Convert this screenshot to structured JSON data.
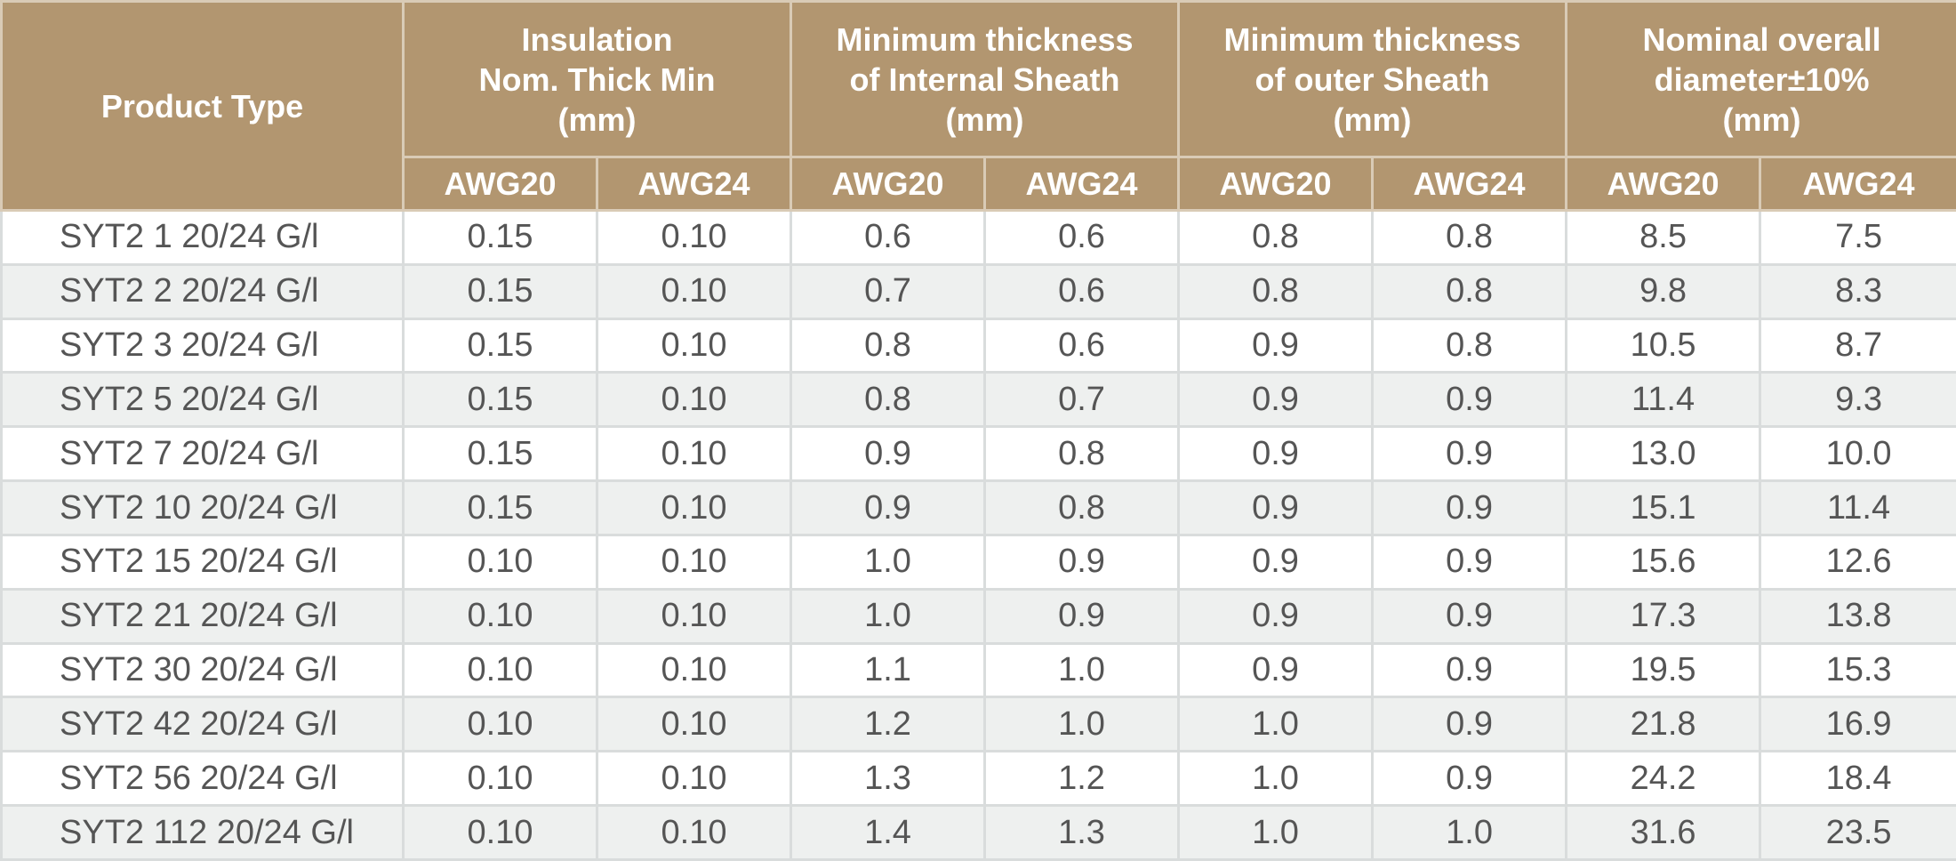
{
  "table": {
    "product_header": "Product Type",
    "groups": [
      {
        "lines": [
          "Insulation",
          "Nom. Thick Min",
          "(mm)"
        ],
        "sub": [
          "AWG20",
          "AWG24"
        ]
      },
      {
        "lines": [
          "Minimum thickness",
          "of Internal Sheath",
          "(mm)"
        ],
        "sub": [
          "AWG20",
          "AWG24"
        ]
      },
      {
        "lines": [
          "Minimum thickness",
          "of outer Sheath",
          "(mm)"
        ],
        "sub": [
          "AWG20",
          "AWG24"
        ]
      },
      {
        "lines": [
          "Nominal overall",
          "diameter±10%",
          "(mm)"
        ],
        "sub": [
          "AWG20",
          "AWG24"
        ]
      }
    ],
    "rows": [
      [
        "SYT2 1 20/24 G/l",
        "0.15",
        "0.10",
        "0.6",
        "0.6",
        "0.8",
        "0.8",
        "8.5",
        "7.5"
      ],
      [
        "SYT2 2 20/24 G/l",
        "0.15",
        "0.10",
        "0.7",
        "0.6",
        "0.8",
        "0.8",
        "9.8",
        "8.3"
      ],
      [
        "SYT2 3 20/24 G/l",
        "0.15",
        "0.10",
        "0.8",
        "0.6",
        "0.9",
        "0.8",
        "10.5",
        "8.7"
      ],
      [
        "SYT2 5 20/24 G/l",
        "0.15",
        "0.10",
        "0.8",
        "0.7",
        "0.9",
        "0.9",
        "11.4",
        "9.3"
      ],
      [
        "SYT2 7 20/24 G/l",
        "0.15",
        "0.10",
        "0.9",
        "0.8",
        "0.9",
        "0.9",
        "13.0",
        "10.0"
      ],
      [
        "SYT2 10 20/24 G/l",
        "0.15",
        "0.10",
        "0.9",
        "0.8",
        "0.9",
        "0.9",
        "15.1",
        "11.4"
      ],
      [
        "SYT2 15 20/24 G/l",
        "0.10",
        "0.10",
        "1.0",
        "0.9",
        "0.9",
        "0.9",
        "15.6",
        "12.6"
      ],
      [
        "SYT2 21 20/24 G/l",
        "0.10",
        "0.10",
        "1.0",
        "0.9",
        "0.9",
        "0.9",
        "17.3",
        "13.8"
      ],
      [
        "SYT2 30 20/24 G/l",
        "0.10",
        "0.10",
        "1.1",
        "1.0",
        "0.9",
        "0.9",
        "19.5",
        "15.3"
      ],
      [
        "SYT2 42 20/24 G/l",
        "0.10",
        "0.10",
        "1.2",
        "1.0",
        "1.0",
        "0.9",
        "21.8",
        "16.9"
      ],
      [
        "SYT2 56 20/24 G/l",
        "0.10",
        "0.10",
        "1.3",
        "1.2",
        "1.0",
        "0.9",
        "24.2",
        "18.4"
      ],
      [
        "SYT2 112 20/24 G/l",
        "0.10",
        "0.10",
        "1.4",
        "1.3",
        "1.0",
        "1.0",
        "31.6",
        "23.5"
      ]
    ]
  },
  "colors": {
    "header_bg": "#b29670",
    "header_text": "#ffffff",
    "row_alt_bg": "#eef0ef",
    "cell_text": "#555555",
    "grid_line": "#d9dcdc"
  }
}
